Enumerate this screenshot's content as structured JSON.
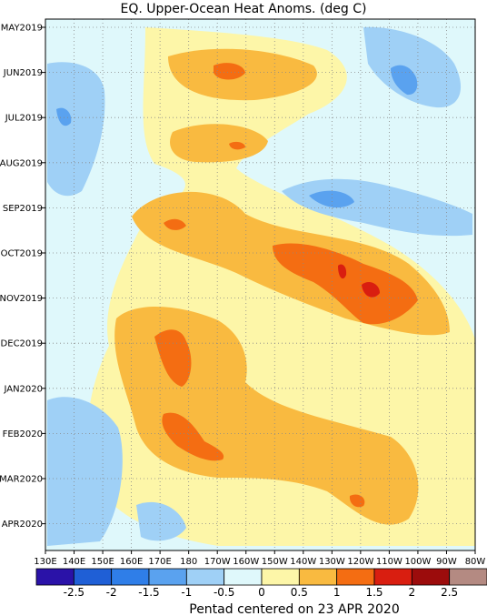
{
  "chart_data": {
    "type": "heatmap",
    "title": "EQ. Upper-Ocean Heat Anoms. (deg C)",
    "footer": "Pentad centered on 23 APR 2020",
    "x_ticks": [
      "130E",
      "140E",
      "150E",
      "160E",
      "170E",
      "180",
      "170W",
      "160W",
      "150W",
      "140W",
      "130W",
      "120W",
      "110W",
      "100W",
      "90W",
      "80W"
    ],
    "y_ticks": [
      "MAY2019",
      "JUN2019",
      "JUL2019",
      "AUG2019",
      "SEP2019",
      "OCT2019",
      "NOV2019",
      "DEC2019",
      "JAN2020",
      "FEB2020",
      "MAR2020",
      "APR2020"
    ],
    "grid": true,
    "colorbar": {
      "labels": [
        "-2.5",
        "-2",
        "-1.5",
        "-1",
        "-0.5",
        "0",
        "0.5",
        "1",
        "1.5",
        "2",
        "2.5"
      ],
      "colors": [
        "#2a12a8",
        "#1f5fd6",
        "#2f7ee8",
        "#5aa2ef",
        "#9fd0f6",
        "#dff8fb",
        "#fdf6a8",
        "#f9ba40",
        "#f46d12",
        "#d91e10",
        "#9c0c0c",
        "#b48a82"
      ]
    },
    "anomaly_regions": [
      {
        "level": 0.5,
        "x": [
          "170E",
          "140W"
        ],
        "y": [
          "MAY2019",
          "JUL2019"
        ]
      },
      {
        "level": 1.0,
        "x": [
          "165E",
          "150W"
        ],
        "y": [
          "MAY2019",
          "JUN2019"
        ]
      },
      {
        "level": 1.5,
        "x": [
          "173E",
          "178W"
        ],
        "y": [
          "JUN2019",
          "JUN2019"
        ]
      },
      {
        "level": 1.0,
        "x": [
          "168E",
          "158W"
        ],
        "y": [
          "JUL2019",
          "AUG2019"
        ]
      },
      {
        "level": 1.0,
        "x": [
          "158E",
          "95W"
        ],
        "y": [
          "AUG2019",
          "DEC2019"
        ]
      },
      {
        "level": 1.5,
        "x": [
          "140W",
          "108W"
        ],
        "y": [
          "OCT2019",
          "NOV2019"
        ]
      },
      {
        "level": 2.0,
        "x": [
          "125W",
          "115W"
        ],
        "y": [
          "OCT2019",
          "NOV2019"
        ]
      },
      {
        "level": 1.0,
        "x": [
          "158E",
          "95W"
        ],
        "y": [
          "NOV2019",
          "MAR2020"
        ]
      },
      {
        "level": 1.5,
        "x": [
          "170E",
          "178E"
        ],
        "y": [
          "DEC2019",
          "JAN2020"
        ]
      },
      {
        "level": 1.5,
        "x": [
          "173E",
          "178E"
        ],
        "y": [
          "FEB2020",
          "MAR2020"
        ]
      },
      {
        "level": -1.0,
        "x": [
          "105W",
          "95W"
        ],
        "y": [
          "MAY2019",
          "JUL2019"
        ]
      },
      {
        "level": -1.0,
        "x": [
          "140W",
          "85W"
        ],
        "y": [
          "AUG2019",
          "SEP2019"
        ]
      },
      {
        "level": -1.0,
        "x": [
          "135E",
          "145E"
        ],
        "y": [
          "JUN2019",
          "SEP2019"
        ]
      },
      {
        "level": -1.0,
        "x": [
          "135E",
          "160E"
        ],
        "y": [
          "JAN2020",
          "APR2020"
        ]
      }
    ]
  }
}
